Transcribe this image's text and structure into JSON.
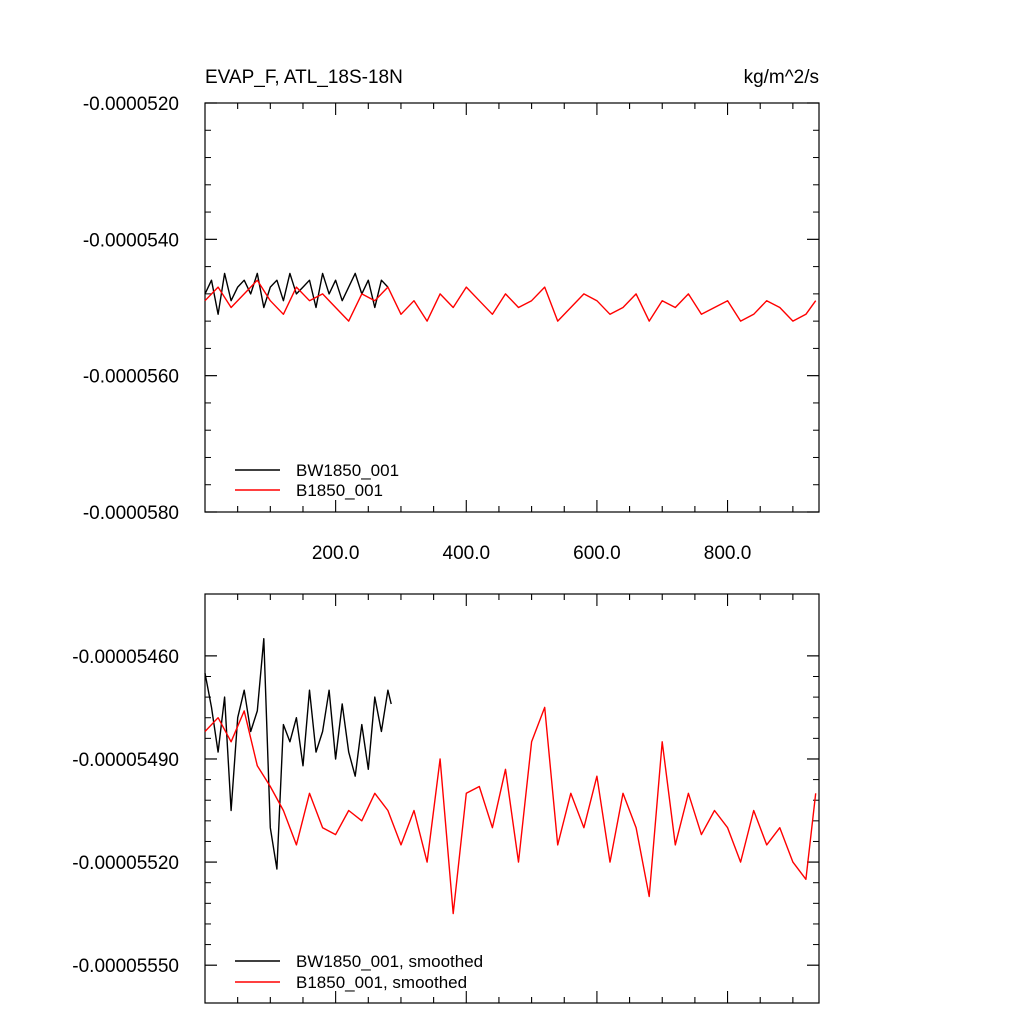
{
  "colors": {
    "bw": "#000000",
    "b": "#ff0000",
    "axis": "#000000"
  },
  "chart_data": [
    {
      "type": "line",
      "title": "EVAP_F, ATL_18S-18N",
      "units": "kg/m^2/s",
      "xlim": [
        0,
        940
      ],
      "ylim": [
        -5.8e-05,
        -5.2e-05
      ],
      "x_ticks": [
        200,
        400,
        600,
        800
      ],
      "x_tick_labels": [
        "200.0",
        "400.0",
        "600.0",
        "800.0"
      ],
      "y_ticks": [
        -5.2e-05,
        -5.4e-05,
        -5.6e-05,
        -5.8e-05
      ],
      "y_tick_labels": [
        "-0.0000520",
        "-0.0000540",
        "-0.0000560",
        "-0.0000580"
      ],
      "legend": {
        "position": "bottom-left"
      },
      "series": [
        {
          "name": "BW1850_001",
          "color": "#000000",
          "x": [
            0,
            10,
            20,
            30,
            40,
            50,
            60,
            70,
            80,
            90,
            100,
            110,
            120,
            130,
            140,
            150,
            160,
            170,
            180,
            190,
            200,
            210,
            220,
            230,
            240,
            250,
            260,
            270,
            280
          ],
          "y": [
            -5.48e-05,
            -5.46e-05,
            -5.51e-05,
            -5.45e-05,
            -5.49e-05,
            -5.47e-05,
            -5.46e-05,
            -5.48e-05,
            -5.45e-05,
            -5.5e-05,
            -5.47e-05,
            -5.46e-05,
            -5.49e-05,
            -5.45e-05,
            -5.48e-05,
            -5.47e-05,
            -5.46e-05,
            -5.5e-05,
            -5.45e-05,
            -5.48e-05,
            -5.46e-05,
            -5.49e-05,
            -5.47e-05,
            -5.45e-05,
            -5.48e-05,
            -5.46e-05,
            -5.5e-05,
            -5.46e-05,
            -5.47e-05
          ]
        },
        {
          "name": "B1850_001",
          "color": "#ff0000",
          "x": [
            0,
            20,
            40,
            60,
            80,
            100,
            120,
            140,
            160,
            180,
            200,
            220,
            240,
            260,
            280,
            300,
            320,
            340,
            360,
            380,
            400,
            420,
            440,
            460,
            480,
            500,
            520,
            540,
            560,
            580,
            600,
            620,
            640,
            660,
            680,
            700,
            720,
            740,
            760,
            780,
            800,
            820,
            840,
            860,
            880,
            900,
            920,
            935
          ],
          "y": [
            -5.49e-05,
            -5.47e-05,
            -5.5e-05,
            -5.48e-05,
            -5.46e-05,
            -5.49e-05,
            -5.51e-05,
            -5.47e-05,
            -5.49e-05,
            -5.48e-05,
            -5.5e-05,
            -5.52e-05,
            -5.48e-05,
            -5.49e-05,
            -5.47e-05,
            -5.51e-05,
            -5.49e-05,
            -5.52e-05,
            -5.48e-05,
            -5.5e-05,
            -5.47e-05,
            -5.49e-05,
            -5.51e-05,
            -5.48e-05,
            -5.5e-05,
            -5.49e-05,
            -5.47e-05,
            -5.52e-05,
            -5.5e-05,
            -5.48e-05,
            -5.49e-05,
            -5.51e-05,
            -5.5e-05,
            -5.48e-05,
            -5.52e-05,
            -5.49e-05,
            -5.5e-05,
            -5.48e-05,
            -5.51e-05,
            -5.5e-05,
            -5.49e-05,
            -5.52e-05,
            -5.51e-05,
            -5.49e-05,
            -5.5e-05,
            -5.52e-05,
            -5.51e-05,
            -5.49e-05
          ]
        }
      ]
    },
    {
      "type": "line",
      "xlim": [
        0,
        940
      ],
      "ylim": [
        -5.561e-05,
        -5.442e-05
      ],
      "y_ticks": [
        -5.46e-05,
        -5.49e-05,
        -5.52e-05,
        -5.55e-05
      ],
      "y_tick_labels": [
        "-0.00005460",
        "-0.00005490",
        "-0.00005520",
        "-0.00005550"
      ],
      "legend": {
        "position": "bottom-left"
      },
      "series": [
        {
          "name": "BW1850_001, smoothed",
          "color": "#000000",
          "x": [
            0,
            10,
            20,
            30,
            40,
            50,
            60,
            70,
            80,
            90,
            100,
            110,
            120,
            130,
            140,
            150,
            160,
            170,
            180,
            190,
            200,
            210,
            220,
            230,
            240,
            250,
            260,
            270,
            280,
            285
          ],
          "y": [
            -5.465e-05,
            -5.475e-05,
            -5.488e-05,
            -5.472e-05,
            -5.505e-05,
            -5.478e-05,
            -5.47e-05,
            -5.482e-05,
            -5.476e-05,
            -5.455e-05,
            -5.51e-05,
            -5.522e-05,
            -5.48e-05,
            -5.485e-05,
            -5.478e-05,
            -5.492e-05,
            -5.47e-05,
            -5.488e-05,
            -5.482e-05,
            -5.47e-05,
            -5.49e-05,
            -5.474e-05,
            -5.488e-05,
            -5.495e-05,
            -5.48e-05,
            -5.493e-05,
            -5.472e-05,
            -5.482e-05,
            -5.47e-05,
            -5.474e-05
          ]
        },
        {
          "name": "B1850_001, smoothed",
          "color": "#ff0000",
          "x": [
            0,
            20,
            40,
            60,
            80,
            100,
            120,
            140,
            160,
            180,
            200,
            220,
            240,
            260,
            280,
            300,
            320,
            340,
            360,
            380,
            400,
            420,
            440,
            460,
            480,
            500,
            520,
            540,
            560,
            580,
            600,
            620,
            640,
            660,
            680,
            700,
            720,
            740,
            760,
            780,
            800,
            820,
            840,
            860,
            880,
            900,
            920,
            935
          ],
          "y": [
            -5.482e-05,
            -5.478e-05,
            -5.485e-05,
            -5.476e-05,
            -5.492e-05,
            -5.498e-05,
            -5.505e-05,
            -5.515e-05,
            -5.5e-05,
            -5.51e-05,
            -5.512e-05,
            -5.505e-05,
            -5.508e-05,
            -5.5e-05,
            -5.505e-05,
            -5.515e-05,
            -5.505e-05,
            -5.52e-05,
            -5.49e-05,
            -5.535e-05,
            -5.5e-05,
            -5.498e-05,
            -5.51e-05,
            -5.493e-05,
            -5.52e-05,
            -5.485e-05,
            -5.475e-05,
            -5.515e-05,
            -5.5e-05,
            -5.51e-05,
            -5.495e-05,
            -5.52e-05,
            -5.5e-05,
            -5.51e-05,
            -5.53e-05,
            -5.485e-05,
            -5.515e-05,
            -5.5e-05,
            -5.512e-05,
            -5.505e-05,
            -5.51e-05,
            -5.52e-05,
            -5.505e-05,
            -5.515e-05,
            -5.51e-05,
            -5.52e-05,
            -5.525e-05,
            -5.5e-05
          ]
        }
      ]
    }
  ]
}
